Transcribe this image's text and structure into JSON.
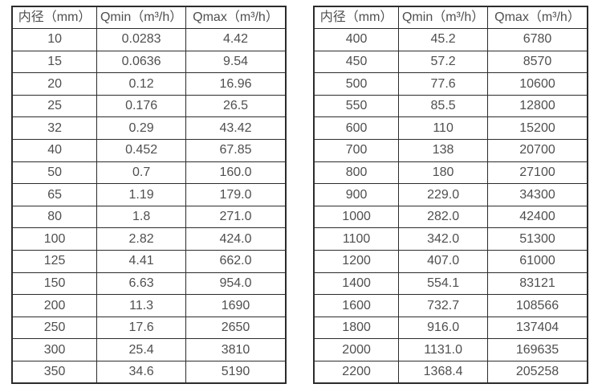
{
  "page": {
    "background": "#ffffff",
    "text_color": "#4f4f4f",
    "border_color": "#2c2c2c"
  },
  "chart_data": [
    {
      "type": "table",
      "name": "flow-table-dn10-350",
      "columns": [
        "内径（mm）",
        "Qmin（m³/h）",
        "Qmax（m³/h）"
      ],
      "rows": [
        [
          "10",
          "0.0283",
          "4.42"
        ],
        [
          "15",
          "0.0636",
          "9.54"
        ],
        [
          "20",
          "0.12",
          "16.96"
        ],
        [
          "25",
          "0.176",
          "26.5"
        ],
        [
          "32",
          "0.29",
          "43.42"
        ],
        [
          "40",
          "0.452",
          "67.85"
        ],
        [
          "50",
          "0.7",
          "160.0"
        ],
        [
          "65",
          "1.19",
          "179.0"
        ],
        [
          "80",
          "1.8",
          "271.0"
        ],
        [
          "100",
          "2.82",
          "424.0"
        ],
        [
          "125",
          "4.41",
          "662.0"
        ],
        [
          "150",
          "6.63",
          "954.0"
        ],
        [
          "200",
          "11.3",
          "1690"
        ],
        [
          "250",
          "17.6",
          "2650"
        ],
        [
          "300",
          "25.4",
          "3810"
        ],
        [
          "350",
          "34.6",
          "5190"
        ]
      ]
    },
    {
      "type": "table",
      "name": "flow-table-dn400-2200",
      "columns": [
        "内径（mm）",
        "Qmin（m³/h）",
        "Qmax（m³/h）"
      ],
      "rows": [
        [
          "400",
          "45.2",
          "6780"
        ],
        [
          "450",
          "57.2",
          "8570"
        ],
        [
          "500",
          "77.6",
          "10600"
        ],
        [
          "550",
          "85.5",
          "12800"
        ],
        [
          "600",
          "110",
          "15200"
        ],
        [
          "700",
          "138",
          "20700"
        ],
        [
          "800",
          "180",
          "27100"
        ],
        [
          "900",
          "229.0",
          "34300"
        ],
        [
          "1000",
          "282.0",
          "42400"
        ],
        [
          "1100",
          "342.0",
          "51300"
        ],
        [
          "1200",
          "407.0",
          "61000"
        ],
        [
          "1400",
          "554.1",
          "83121"
        ],
        [
          "1600",
          "732.7",
          "108566"
        ],
        [
          "1800",
          "916.0",
          "137404"
        ],
        [
          "2000",
          "1131.0",
          "169635"
        ],
        [
          "2200",
          "1368.4",
          "205258"
        ]
      ]
    }
  ]
}
